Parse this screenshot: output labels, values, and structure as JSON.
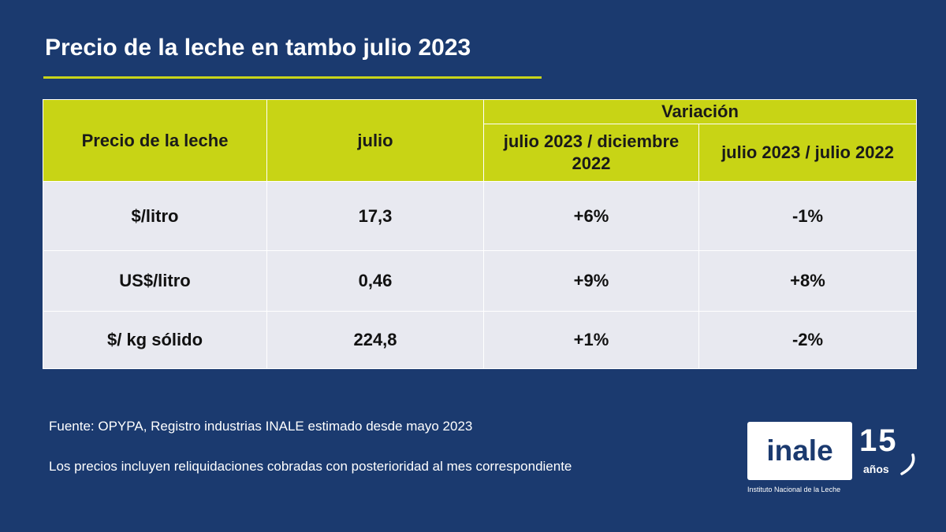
{
  "title": "Precio de la leche en tambo julio 2023",
  "table": {
    "header_col1": "Precio de la leche",
    "header_col2": "julio",
    "header_group": "Variación",
    "header_col3": "julio 2023 / diciembre 2022",
    "header_col4": "julio 2023 / julio 2022",
    "rows": [
      {
        "label": "$/litro",
        "value": "17,3",
        "var_dec": "+6%",
        "var_jul": "-1%"
      },
      {
        "label": "US$/litro",
        "value": "0,46",
        "var_dec": "+9%",
        "var_jul": "+8%"
      },
      {
        "label": "$/ kg sólido",
        "value": "224,8",
        "var_dec": "+1%",
        "var_jul": "-2%"
      }
    ]
  },
  "footnotes": {
    "source": "Fuente: OPYPA, Registro industrias INALE estimado desde mayo 2023",
    "note": "Los precios incluyen reliquidaciones cobradas con posterioridad al mes correspondiente"
  },
  "logo": {
    "word": "inale",
    "number": "15",
    "years": "años",
    "subtitle": "Instituto Nacional de la Leche"
  },
  "colors": {
    "background": "#1b3a6f",
    "accent": "#c8d415",
    "row_bg": "#e8e9f0"
  }
}
